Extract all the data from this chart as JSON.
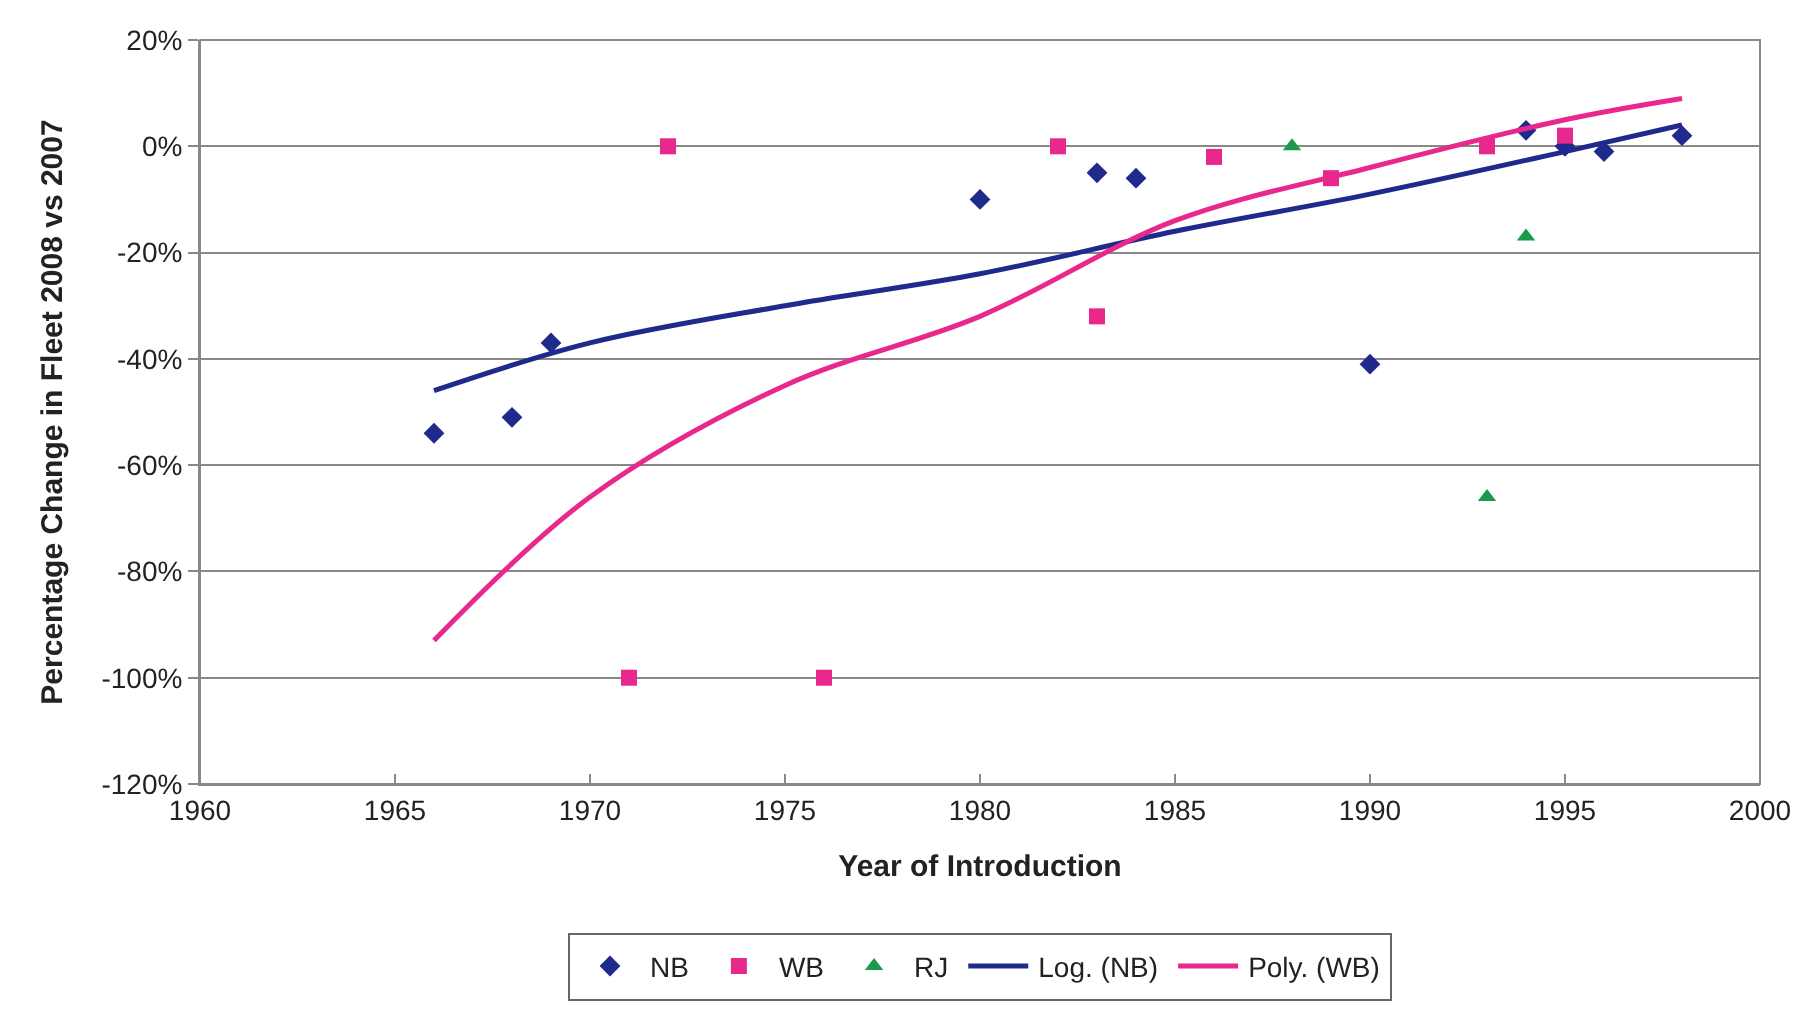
{
  "chart_data": {
    "type": "scatter",
    "xlabel": "Year of Introduction",
    "ylabel": "Percentage Change in Fleet 2008 vs 2007",
    "xlim": [
      1960,
      2000
    ],
    "xticks": [
      1960,
      1965,
      1970,
      1975,
      1980,
      1985,
      1990,
      1995,
      2000
    ],
    "ylim": [
      -120,
      20
    ],
    "yticks": [
      {
        "value": -120,
        "label": "-120%"
      },
      {
        "value": -100,
        "label": "-100%"
      },
      {
        "value": -80,
        "label": "-80%"
      },
      {
        "value": -60,
        "label": "-60%"
      },
      {
        "value": -40,
        "label": "-40%"
      },
      {
        "value": -20,
        "label": "-20%"
      },
      {
        "value": 0,
        "label": "0%"
      },
      {
        "value": 20,
        "label": "20%"
      }
    ],
    "grid": "y",
    "legend": "bottom",
    "series": [
      {
        "name": "NB",
        "color": "#1f2a8c",
        "marker": "diamond",
        "x": [
          1966,
          1968,
          1969,
          1980,
          1983,
          1984,
          1990,
          1994,
          1995,
          1996,
          1998
        ],
        "values": [
          -54,
          -51,
          -37,
          -10,
          -5,
          -6,
          -41,
          3,
          0,
          -1,
          2
        ]
      },
      {
        "name": "WB",
        "color": "#e8288c",
        "marker": "square",
        "x": [
          1971,
          1972,
          1976,
          1982,
          1983,
          1986,
          1989,
          1993,
          1995
        ],
        "values": [
          -100,
          0,
          -100,
          0,
          -32,
          -2,
          -6,
          0,
          2
        ]
      },
      {
        "name": "RJ",
        "color": "#1a9a4a",
        "marker": "triangle",
        "x": [
          1988,
          1993,
          1994
        ],
        "values": [
          0,
          -66,
          -17
        ]
      },
      {
        "name": "Log. (NB)",
        "type": "line",
        "color": "#1f2a8c",
        "x": [
          1966,
          1970,
          1975,
          1980,
          1985,
          1990,
          1995,
          1998
        ],
        "values": [
          -46,
          -37,
          -30,
          -24,
          -16,
          -9,
          -1,
          4
        ]
      },
      {
        "name": "Poly. (WB)",
        "type": "line",
        "color": "#e8288c",
        "x": [
          1966,
          1970,
          1975,
          1980,
          1985,
          1990,
          1995,
          1998
        ],
        "values": [
          -93,
          -66,
          -45,
          -32,
          -14,
          -4,
          5,
          9
        ]
      }
    ]
  }
}
